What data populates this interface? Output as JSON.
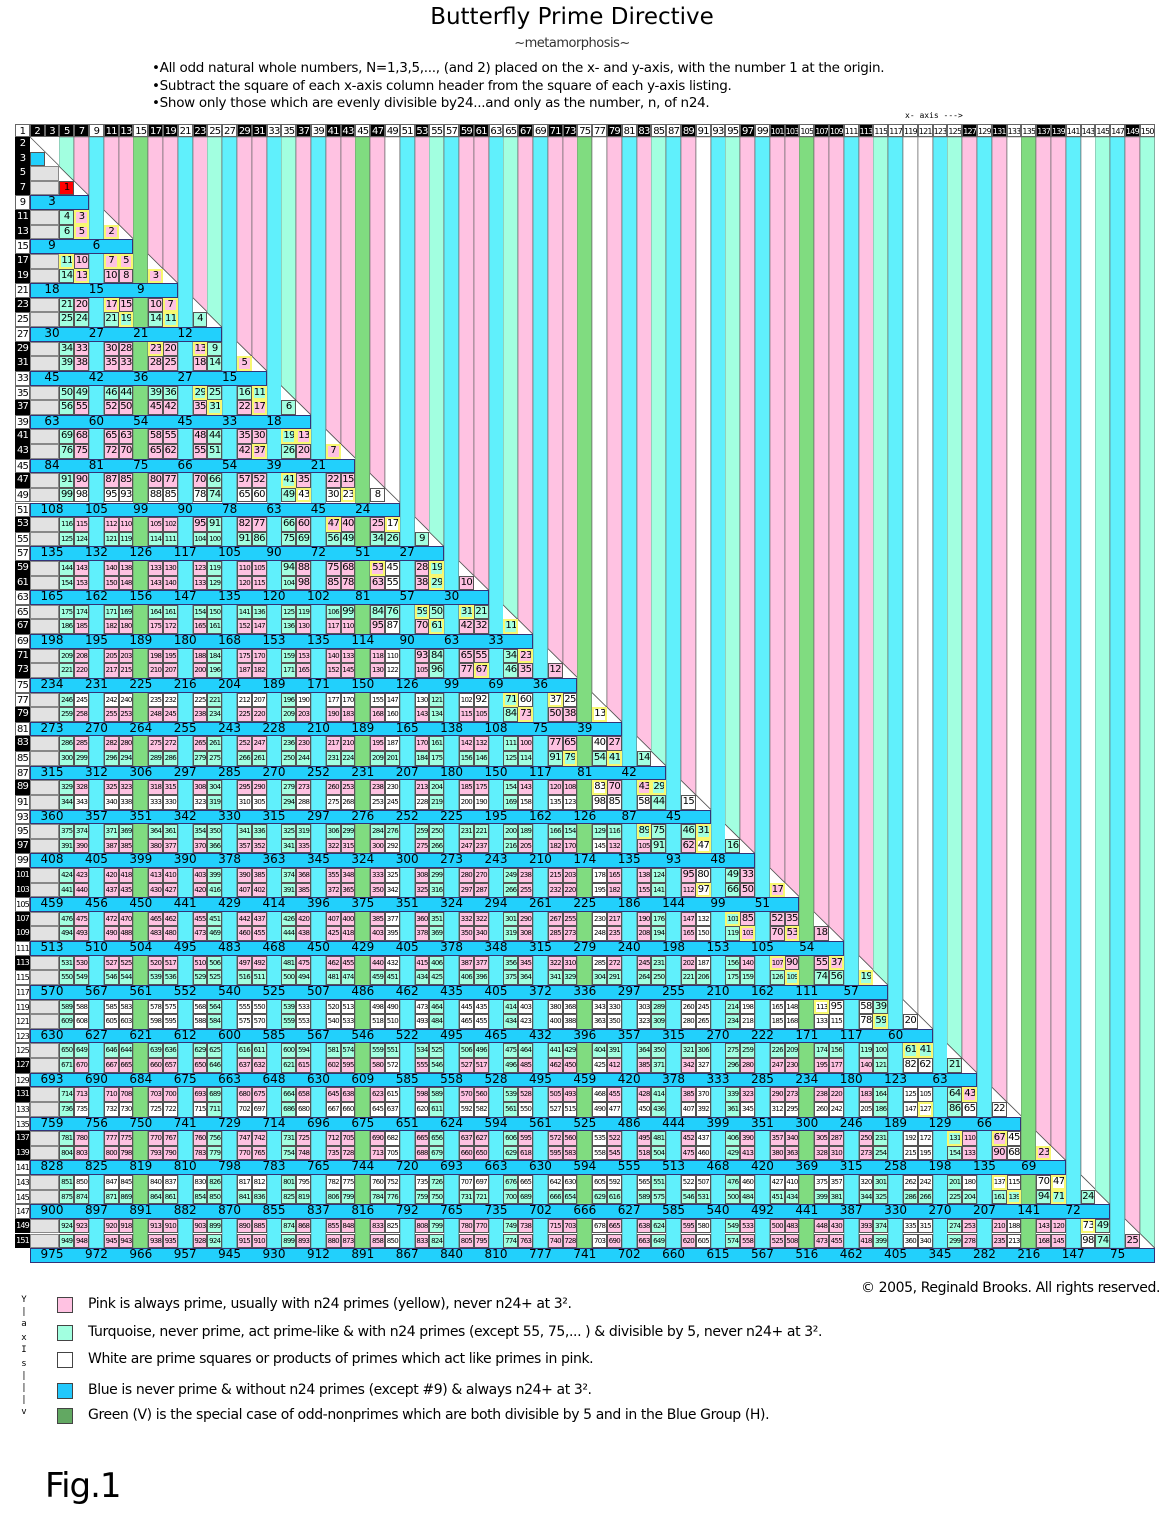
{
  "header": {
    "title": "Butterfly Prime Directive",
    "subtitle": "~metamorphosis~",
    "bullets": [
      "•All odd natural whole numbers, N=1,3,5,..., (and 2) placed on the x- and y-axis, with the number 1 at the origin.",
      "•Subtract  the square of each x-axis column header from the square of each y-axis listing.",
      "•Show only those which are evenly divisible by24...and only as the number, n,  of n24."
    ],
    "x_axis_label": "x- axis --->"
  },
  "grid": {
    "origin_label": "1",
    "x_axis": [
      2,
      3,
      5,
      7,
      9,
      11,
      13,
      15,
      17,
      19,
      21,
      23,
      25,
      27,
      29,
      31,
      33,
      35,
      37,
      39,
      41,
      43,
      45,
      47,
      49,
      51,
      53,
      55,
      57,
      59,
      61,
      63,
      65,
      67,
      69,
      71,
      73,
      75,
      77,
      79,
      81,
      83,
      85,
      87,
      89,
      91,
      93,
      95,
      97,
      99,
      101,
      103,
      105,
      107,
      109,
      111,
      113,
      115,
      117,
      119,
      121,
      123,
      125,
      127,
      129,
      131,
      133,
      135,
      137,
      139,
      141,
      143,
      145,
      147,
      149,
      150
    ],
    "y_axis": [
      2,
      3,
      5,
      7,
      9,
      11,
      13,
      15,
      17,
      19,
      21,
      23,
      25,
      27,
      29,
      31,
      33,
      35,
      37,
      39,
      41,
      43,
      45,
      47,
      49,
      51,
      53,
      55,
      57,
      59,
      61,
      63,
      65,
      67,
      69,
      71,
      73,
      75,
      77,
      79,
      81,
      83,
      85,
      87,
      89,
      91,
      93,
      95,
      97,
      99,
      101,
      103,
      105,
      107,
      109,
      111,
      113,
      115,
      117,
      119,
      121,
      123,
      125,
      127,
      129,
      131,
      133,
      135,
      137,
      139,
      141,
      143,
      145,
      147,
      149,
      151
    ],
    "rule": "n = (y² − x²) / 24, shown only when evenly divisible",
    "column_color_overrides": {
      "150": "turquoise"
    },
    "bottom_row": [
      975,
      972,
      966,
      957,
      945,
      930,
      912,
      891,
      867,
      840,
      810,
      777,
      741,
      702,
      660,
      615,
      567,
      516,
      462,
      405,
      345,
      282,
      216,
      147,
      75
    ]
  },
  "colors": {
    "pink": "#ffc2e2",
    "turquoise": "#a2ffe0",
    "white": "#ffffff",
    "blue_column": "#60f0fc",
    "blue_row": "#22d0fc",
    "green": "#80dc80",
    "gray": "#e2e2e2",
    "yellow_border": "#f8f870",
    "red": "#ff0000"
  },
  "copyright": "© 2005, Reginald Brooks. All rights reserved.",
  "legend": {
    "y_axis_label": [
      "Y",
      "|",
      "a",
      "x",
      "I",
      "s",
      "|",
      "|",
      "|",
      "v"
    ],
    "items": [
      {
        "color": "#ffc2e2",
        "text": "Pink  is always prime, usually with n24 primes (yellow), never n24+ at 3²."
      },
      {
        "color": "#a2ffe0",
        "text": "Turquoise, never prime, act prime-like  & with n24 primes (except 55, 75,... ) & divisible by 5,  never n24+  at 3²."
      },
      {
        "color": "#ffffff",
        "text": "White  are prime squares or products of primes which act like primes in pink."
      },
      {
        "color": "#22c8fc",
        "text": "Blue is never prime & without n24 primes (except  #9) & always n24+  at 3²."
      },
      {
        "color": "#62a862",
        "text": "Green (V) is the special case of odd-nonprimes which are both divisible by 5 and in the Blue Group (H)."
      }
    ]
  },
  "figure_label": "Fig.1"
}
